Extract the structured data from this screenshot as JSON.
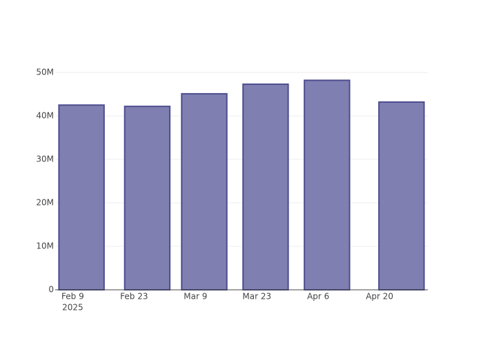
{
  "chart_data": {
    "type": "bar",
    "x": [
      "2025-02-11",
      "2025-02-26",
      "2025-03-11",
      "2025-03-25",
      "2025-04-08",
      "2025-04-25"
    ],
    "values": [
      42500000,
      42200000,
      45100000,
      47300000,
      48200000,
      43200000
    ],
    "color": "#7f7fb1",
    "edge_color": "#4c4c8e",
    "xlim": [
      "2025-02-05",
      "2025-05-01"
    ],
    "xticks": [
      {
        "value": "2025-02-09",
        "label": "Feb 9"
      },
      {
        "value": "2025-02-23",
        "label": "Feb 23"
      },
      {
        "value": "2025-03-09",
        "label": "Mar 9"
      },
      {
        "value": "2025-03-23",
        "label": "Mar 23"
      },
      {
        "value": "2025-04-06",
        "label": "Apr 6"
      },
      {
        "value": "2025-04-20",
        "label": "Apr 20"
      }
    ],
    "xtick_year": "2025",
    "ylim": [
      0,
      50800000
    ],
    "yticks": [
      0,
      {
        "value": 10000000,
        "label": "10M"
      },
      {
        "value": 20000000,
        "label": "20M"
      },
      {
        "value": 30000000,
        "label": "30M"
      },
      {
        "value": 40000000,
        "label": "40M"
      },
      {
        "value": 50000000,
        "label": "50M"
      }
    ],
    "grid": true
  }
}
